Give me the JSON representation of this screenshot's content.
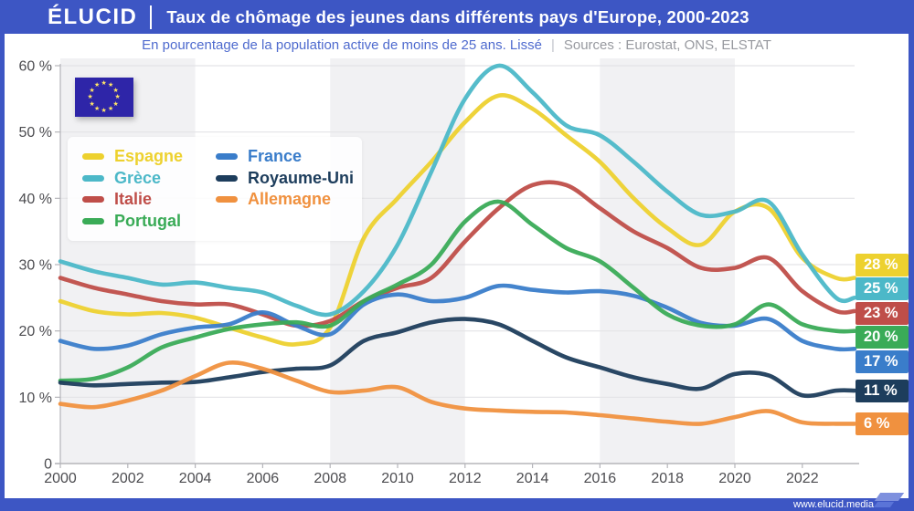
{
  "header": {
    "logo": "ÉLUCID",
    "title": "Taux de chômage des jeunes dans différents pays d'Europe, 2000-2023"
  },
  "subtitle": {
    "description": "En pourcentage de la population active de moins de 25 ans. Lissé",
    "separator": "|",
    "sources": "Sources : Eurostat, ONS, ELSTAT"
  },
  "footer": {
    "url": "www.elucid.media"
  },
  "flag": {
    "name": "eu-flag",
    "stars": 12,
    "background": "#2e25a8",
    "star_color": "#ffe566"
  },
  "colors": {
    "accent_blue": "#3d56c4",
    "band_gray": "#f1f1f3",
    "gridline": "#e3e3e6",
    "axis": "#b5b5ba",
    "tick_label": "#4c4c50"
  },
  "chart_data": {
    "type": "line",
    "title": "Taux de chômage des jeunes dans différents pays d'Europe, 2000-2023",
    "xlabel": "",
    "ylabel": "En pourcentage de la population active de moins de 25 ans",
    "x": [
      2000,
      2001,
      2002,
      2003,
      2004,
      2005,
      2006,
      2007,
      2008,
      2009,
      2010,
      2011,
      2012,
      2013,
      2014,
      2015,
      2016,
      2017,
      2018,
      2019,
      2020,
      2021,
      2022,
      2023
    ],
    "series": [
      {
        "name": "Espagne",
        "color": "#edd12f",
        "end_label": "28 %",
        "values": [
          24.5,
          23,
          22.5,
          22.7,
          22,
          20.5,
          19,
          18,
          20.5,
          34,
          40,
          45.5,
          51.5,
          55.5,
          53.5,
          49.5,
          45.5,
          40,
          35.5,
          33,
          38,
          38.5,
          31,
          28
        ]
      },
      {
        "name": "Grèce",
        "color": "#4cb8c8",
        "end_label": "25 %",
        "values": [
          30.5,
          29,
          28,
          27,
          27.3,
          26.5,
          25.8,
          23.8,
          22.5,
          26,
          33,
          44,
          55,
          60,
          56,
          51,
          49.5,
          45.5,
          41,
          37.5,
          38,
          39.5,
          31.5,
          25
        ]
      },
      {
        "name": "Italie",
        "color": "#bf4e49",
        "end_label": "23 %",
        "values": [
          28,
          26.5,
          25.5,
          24.5,
          24,
          24,
          22.5,
          20.8,
          21.5,
          24.5,
          26.5,
          28,
          33.5,
          38.5,
          42,
          42,
          38.5,
          35,
          32.5,
          29.5,
          29.5,
          31,
          26,
          23
        ]
      },
      {
        "name": "Portugal",
        "color": "#3aab57",
        "end_label": "20 %",
        "values": [
          12.5,
          12.8,
          14.5,
          17.5,
          19,
          20.3,
          21,
          21.3,
          20.8,
          24.5,
          27,
          30,
          36.5,
          39.5,
          36,
          32.5,
          30.5,
          26.5,
          22.5,
          20.8,
          21,
          24,
          21,
          20
        ]
      },
      {
        "name": "France",
        "color": "#3a7dca",
        "end_label": "17 %",
        "values": [
          18.5,
          17.3,
          17.8,
          19.5,
          20.5,
          21,
          22.8,
          20.8,
          19.5,
          24,
          25.5,
          24.5,
          25,
          26.8,
          26.2,
          25.8,
          26,
          25.3,
          23.5,
          21.2,
          20.8,
          21.8,
          18.5,
          17.3
        ]
      },
      {
        "name": "Royaume-Uni",
        "color": "#1d3d5c",
        "end_label": "11 %",
        "values": [
          12.2,
          11.8,
          12,
          12.2,
          12.3,
          13,
          13.8,
          14.3,
          14.8,
          18.5,
          19.8,
          21.3,
          21.8,
          21,
          18.5,
          16,
          14.5,
          13,
          12,
          11.3,
          13.5,
          13.3,
          10.3,
          11
        ]
      },
      {
        "name": "Allemagne",
        "color": "#f0913f",
        "end_label": "6 %",
        "values": [
          9,
          8.5,
          9.5,
          11,
          13.2,
          15.2,
          14.3,
          12.5,
          10.8,
          11,
          11.5,
          9.3,
          8.3,
          8,
          7.8,
          7.7,
          7.3,
          6.8,
          6.3,
          6,
          7,
          7.9,
          6.2,
          6
        ]
      }
    ],
    "ylim": [
      0,
      60
    ],
    "yticks": [
      "60 %",
      "50 %",
      "40 %",
      "30 %",
      "20 %",
      "10 %",
      "0"
    ],
    "ytick_values": [
      60,
      50,
      40,
      30,
      20,
      10,
      0
    ],
    "xticks": [
      2000,
      2002,
      2004,
      2006,
      2008,
      2010,
      2012,
      2014,
      2016,
      2018,
      2020,
      2022
    ],
    "grid": "horizontal",
    "background_bands": {
      "start": 2000,
      "width_years": 4,
      "first": "gray"
    },
    "legend_position": "top-left",
    "legend_columns": [
      [
        0,
        1,
        2,
        3
      ],
      [
        4,
        5,
        6
      ]
    ]
  }
}
